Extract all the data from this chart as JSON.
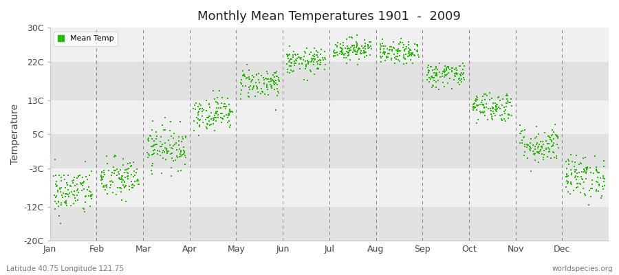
{
  "title": "Monthly Mean Temperatures 1901  -  2009",
  "ylabel": "Temperature",
  "subtitle_left": "Latitude 40.75 Longitude 121.75",
  "subtitle_right": "worldspecies.org",
  "legend_label": "Mean Temp",
  "dot_color": "#22bb00",
  "background_color": "#ffffff",
  "plot_bg_light": "#f0f0f0",
  "plot_bg_dark": "#e2e2e2",
  "yticks": [
    -20,
    -12,
    -3,
    5,
    13,
    22,
    30
  ],
  "ytick_labels": [
    "-20C",
    "-12C",
    "-3C",
    "5C",
    "13C",
    "22C",
    "30C"
  ],
  "ylim": [
    -20,
    30
  ],
  "months": [
    "Jan",
    "Feb",
    "Mar",
    "Apr",
    "May",
    "Jun",
    "Jul",
    "Aug",
    "Sep",
    "Oct",
    "Nov",
    "Dec"
  ],
  "monthly_means": [
    -8.5,
    -5.5,
    2.0,
    10.0,
    17.0,
    22.0,
    25.0,
    24.0,
    19.0,
    11.5,
    2.5,
    -5.0
  ],
  "monthly_stds": [
    2.8,
    2.5,
    2.5,
    2.0,
    1.8,
    1.5,
    1.3,
    1.3,
    1.5,
    1.8,
    2.2,
    2.5
  ],
  "n_years": 109,
  "jitter_scale": 0.42,
  "dot_size": 3.5
}
